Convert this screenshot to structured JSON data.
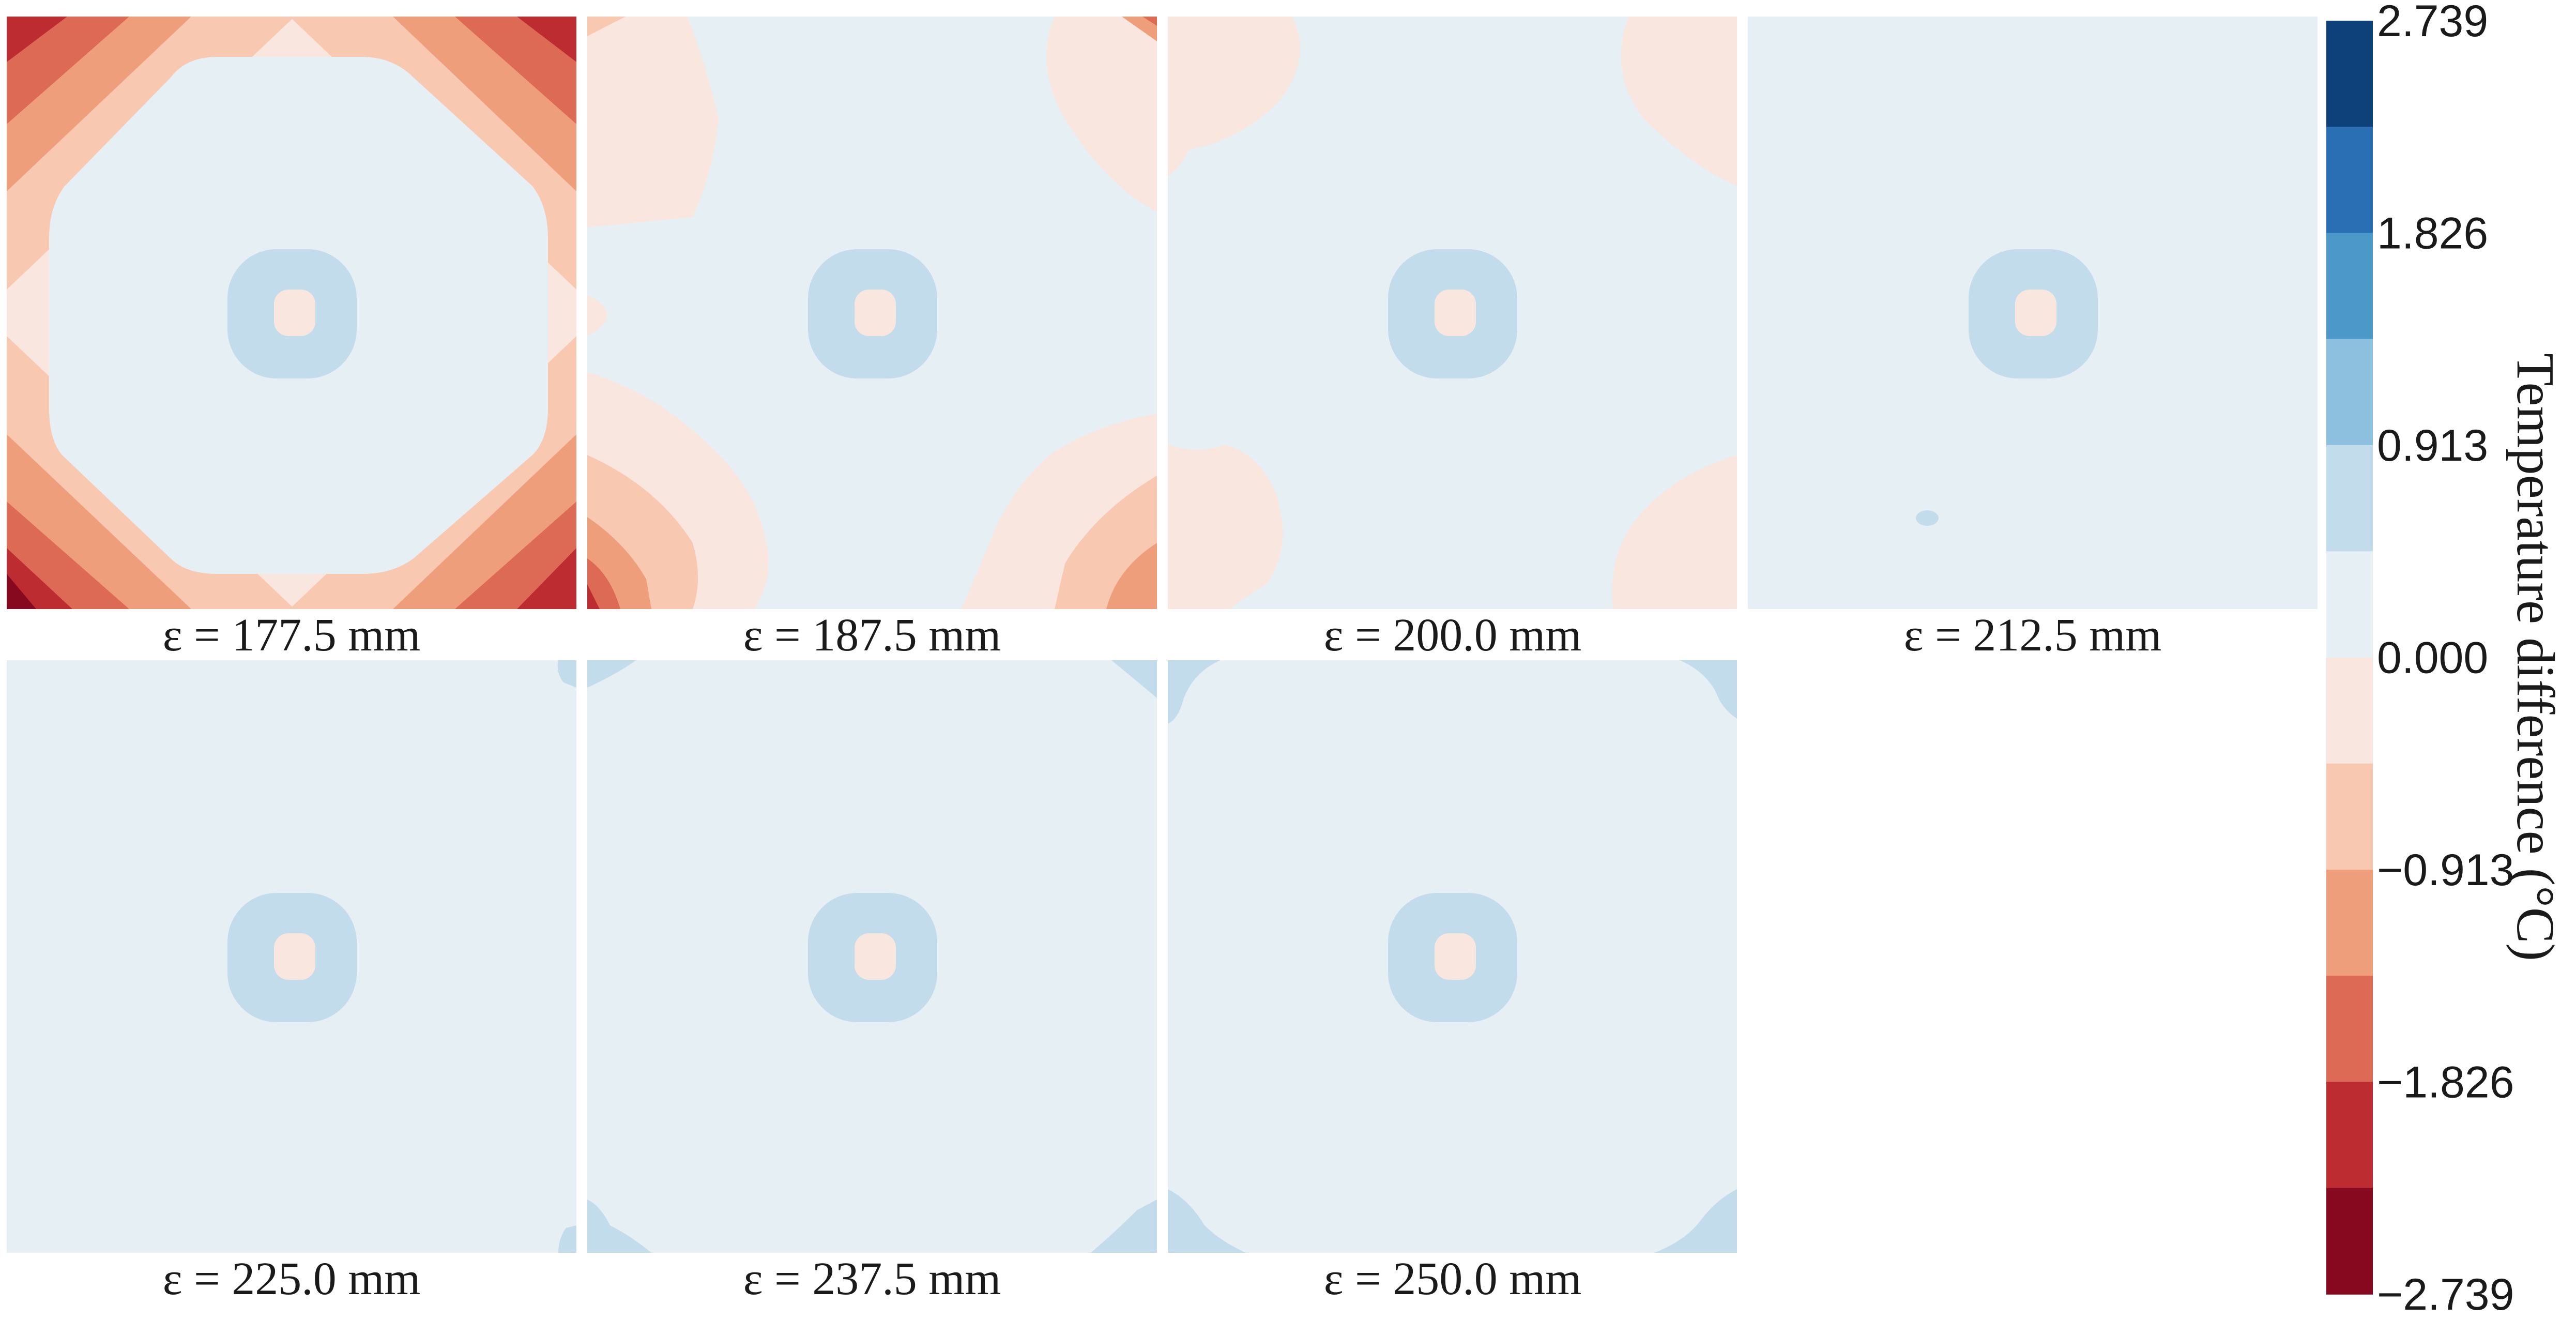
{
  "chart_data": {
    "type": "heatmap",
    "title": "",
    "panels": [
      {
        "label": "ε = 177.5 mm",
        "epsilon_mm": 177.5
      },
      {
        "label": "ε = 187.5 mm",
        "epsilon_mm": 187.5
      },
      {
        "label": "ε = 200.0 mm",
        "epsilon_mm": 200.0
      },
      {
        "label": "ε = 212.5 mm",
        "epsilon_mm": 212.5
      },
      {
        "label": "ε = 225.0 mm",
        "epsilon_mm": 225.0
      },
      {
        "label": "ε = 237.5 mm",
        "epsilon_mm": 237.5
      },
      {
        "label": "ε = 250.0 mm",
        "epsilon_mm": 250.0
      }
    ],
    "colorbar": {
      "label": "Temperature difference (°C)",
      "range": [
        -2.739,
        2.739
      ],
      "tick_labels": [
        "2.739",
        "1.826",
        "0.913",
        "0.000",
        "−0.913",
        "−1.826",
        "−2.739"
      ],
      "tick_values": [
        2.739,
        1.826,
        0.913,
        0.0,
        -0.913,
        -1.826,
        -2.739
      ],
      "levels_top_to_bottom": [
        "#0e4179",
        "#2a6fb4",
        "#4b98c9",
        "#8dc0de",
        "#c3dcec",
        "#e6eff4",
        "#f9e7df",
        "#f9c8b1",
        "#ef9e7c",
        "#dc6a55",
        "#bd2c31",
        "#860920"
      ]
    }
  }
}
